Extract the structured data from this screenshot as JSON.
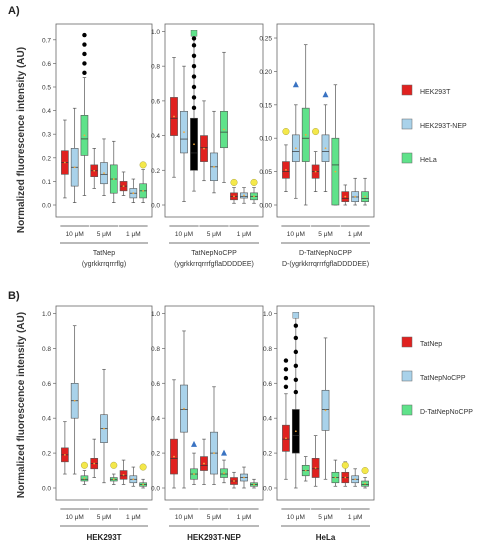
{
  "figure": {
    "panel_a_label": "A)",
    "panel_b_label": "B)",
    "ylabel": "Normalized fluorescence intensity (AU)"
  },
  "colors": {
    "red": "#e0211f",
    "blue": "#a9d2ea",
    "green": "#5fe28a",
    "outlier": "#000000",
    "mean": "#f2a93b",
    "yellow_marker": "#f4e84a",
    "blue_marker": "#3a73c2"
  },
  "legend_a": [
    {
      "label": "HEK293T",
      "color": "red"
    },
    {
      "label": "HEK293T-NEP",
      "color": "blue"
    },
    {
      "label": "HeLa",
      "color": "green"
    }
  ],
  "legend_b": [
    {
      "label": "TatNep",
      "color": "red"
    },
    {
      "label": "TatNepNoCPP",
      "color": "blue"
    },
    {
      "label": "D-TatNepNoCPP",
      "color": "green"
    }
  ],
  "chart_data": [
    {
      "type": "box",
      "panel": "A",
      "groups": [
        "10 μM",
        "5 μM",
        "1 μM"
      ],
      "ylim": [
        0,
        0.75
      ],
      "yticks": [
        "0.0",
        "0.1",
        "0.2",
        "0.3",
        "0.4",
        "0.5",
        "0.6",
        "0.7"
      ],
      "ytick_values": [
        0,
        0.1,
        0.2,
        0.3,
        0.4,
        0.5,
        0.6,
        0.7
      ],
      "caption": "TatNep",
      "caption_bold": "(ygrkkrrqrrrflg)",
      "boxes": [
        {
          "group": 0,
          "color": "red",
          "whisker_low": 0.03,
          "q1": 0.13,
          "median": 0.18,
          "q3": 0.23,
          "whisker_high": 0.36,
          "outliers_high": []
        },
        {
          "group": 0,
          "color": "blue",
          "whisker_low": 0.01,
          "q1": 0.08,
          "median": 0.16,
          "q3": 0.24,
          "whisker_high": 0.41,
          "outliers_high": []
        },
        {
          "group": 0,
          "color": "green",
          "whisker_low": 0.04,
          "q1": 0.21,
          "median": 0.28,
          "q3": 0.38,
          "whisker_high": 0.54,
          "outliers_high": [
            0.56,
            0.6,
            0.64,
            0.68,
            0.72
          ]
        },
        {
          "group": 1,
          "color": "red",
          "whisker_low": 0.07,
          "q1": 0.12,
          "median": 0.145,
          "q3": 0.17,
          "whisker_high": 0.24,
          "outliers_high": []
        },
        {
          "group": 1,
          "color": "blue",
          "whisker_low": 0.04,
          "q1": 0.09,
          "median": 0.13,
          "q3": 0.18,
          "whisker_high": 0.28,
          "outliers_high": []
        },
        {
          "group": 1,
          "color": "green",
          "whisker_low": 0.01,
          "q1": 0.05,
          "median": 0.11,
          "q3": 0.17,
          "whisker_high": 0.27,
          "outliers_high": []
        },
        {
          "group": 2,
          "color": "red",
          "whisker_low": 0.04,
          "q1": 0.06,
          "median": 0.08,
          "q3": 0.1,
          "whisker_high": 0.14,
          "outliers_high": []
        },
        {
          "group": 2,
          "color": "blue",
          "whisker_low": 0.01,
          "q1": 0.03,
          "median": 0.05,
          "q3": 0.07,
          "whisker_high": 0.11,
          "outliers_high": []
        },
        {
          "group": 2,
          "color": "green",
          "whisker_low": 0.01,
          "q1": 0.03,
          "median": 0.06,
          "q3": 0.09,
          "whisker_high": 0.15,
          "outliers_high": []
        }
      ],
      "markers": [
        {
          "box": 8,
          "shape": "circle",
          "color": "yellow_marker",
          "y": 0.17
        }
      ]
    },
    {
      "type": "box",
      "panel": "A",
      "groups": [
        "10 μM",
        "5 μM",
        "1 μM"
      ],
      "ylim": [
        0,
        1.02
      ],
      "yticks": [
        "0.0",
        "0.2",
        "0.4",
        "0.6",
        "0.8",
        "1.0"
      ],
      "ytick_values": [
        0,
        0.2,
        0.4,
        0.6,
        0.8,
        1.0
      ],
      "caption": "TatNepNoCPP",
      "caption_bold": "(ygrkkrrqrrrfgflaDDDDEE)",
      "boxes": [
        {
          "group": 0,
          "color": "red",
          "whisker_low": 0.16,
          "q1": 0.4,
          "median": 0.5,
          "q3": 0.62,
          "whisker_high": 0.85,
          "outliers_high": []
        },
        {
          "group": 0,
          "color": "blue",
          "whisker_low": 0.02,
          "q1": 0.3,
          "median": 0.38,
          "q3": 0.54,
          "whisker_high": 0.8,
          "outliers_high": []
        },
        {
          "group": 0,
          "color": "black",
          "whisker_low": 0.08,
          "q1": 0.2,
          "median": 0.3,
          "q3": 0.5,
          "whisker_high": 0.96,
          "outliers_high": [
            0.56,
            0.62,
            0.68,
            0.74,
            0.8,
            0.86,
            0.92,
            0.96
          ]
        },
        {
          "group": 1,
          "color": "red",
          "whisker_low": 0.14,
          "q1": 0.25,
          "median": 0.33,
          "q3": 0.4,
          "whisker_high": 0.6,
          "outliers_high": []
        },
        {
          "group": 1,
          "color": "blue",
          "whisker_low": 0.07,
          "q1": 0.14,
          "median": 0.22,
          "q3": 0.3,
          "whisker_high": 0.54,
          "outliers_high": []
        },
        {
          "group": 1,
          "color": "green",
          "whisker_low": 0.13,
          "q1": 0.33,
          "median": 0.42,
          "q3": 0.54,
          "whisker_high": 0.88,
          "outliers_high": []
        },
        {
          "group": 2,
          "color": "red",
          "whisker_low": 0.01,
          "q1": 0.03,
          "median": 0.05,
          "q3": 0.07,
          "whisker_high": 0.1,
          "outliers_high": []
        },
        {
          "group": 2,
          "color": "blue",
          "whisker_low": 0.01,
          "q1": 0.04,
          "median": 0.05,
          "q3": 0.07,
          "whisker_high": 0.1,
          "outliers_high": []
        },
        {
          "group": 2,
          "color": "green",
          "whisker_low": 0.01,
          "q1": 0.03,
          "median": 0.05,
          "q3": 0.07,
          "whisker_high": 0.1,
          "outliers_high": []
        }
      ],
      "markers": [
        {
          "box": 2,
          "shape": "square",
          "color": "green",
          "y": 0.99
        },
        {
          "box": 6,
          "shape": "circle",
          "color": "yellow_marker",
          "y": 0.13
        },
        {
          "box": 8,
          "shape": "circle",
          "color": "yellow_marker",
          "y": 0.13
        }
      ]
    },
    {
      "type": "box",
      "panel": "A",
      "groups": [
        "10 μM",
        "5 μM",
        "1 μM"
      ],
      "ylim": [
        0,
        0.265
      ],
      "yticks": [
        "0.00",
        "0.05",
        "0.10",
        "0.15",
        "0.20",
        "0.25"
      ],
      "ytick_values": [
        0,
        0.05,
        0.1,
        0.15,
        0.2,
        0.25
      ],
      "caption": "D-TatNepNoCPP",
      "caption_bold": "D-(ygrkkrrqrrrfgflaDDDDEE)",
      "boxes": [
        {
          "group": 0,
          "color": "red",
          "whisker_low": 0.02,
          "q1": 0.04,
          "median": 0.05,
          "q3": 0.065,
          "whisker_high": 0.09,
          "outliers_high": []
        },
        {
          "group": 0,
          "color": "blue",
          "whisker_low": 0.01,
          "q1": 0.065,
          "median": 0.08,
          "q3": 0.105,
          "whisker_high": 0.15,
          "outliers_high": []
        },
        {
          "group": 0,
          "color": "green",
          "whisker_low": 0.0,
          "q1": 0.065,
          "median": 0.1,
          "q3": 0.145,
          "whisker_high": 0.24,
          "outliers_high": []
        },
        {
          "group": 1,
          "color": "red",
          "whisker_low": 0.02,
          "q1": 0.04,
          "median": 0.05,
          "q3": 0.06,
          "whisker_high": 0.08,
          "outliers_high": []
        },
        {
          "group": 1,
          "color": "blue",
          "whisker_low": 0.02,
          "q1": 0.065,
          "median": 0.08,
          "q3": 0.105,
          "whisker_high": 0.15,
          "outliers_high": []
        },
        {
          "group": 1,
          "color": "green",
          "whisker_low": 0.0,
          "q1": 0.0,
          "median": 0.06,
          "q3": 0.1,
          "whisker_high": 0.18,
          "outliers_high": []
        },
        {
          "group": 2,
          "color": "red",
          "whisker_low": 0.0,
          "q1": 0.005,
          "median": 0.01,
          "q3": 0.02,
          "whisker_high": 0.03,
          "outliers_high": []
        },
        {
          "group": 2,
          "color": "blue",
          "whisker_low": 0.0,
          "q1": 0.005,
          "median": 0.012,
          "q3": 0.02,
          "whisker_high": 0.04,
          "outliers_high": []
        },
        {
          "group": 2,
          "color": "green",
          "whisker_low": 0.0,
          "q1": 0.005,
          "median": 0.01,
          "q3": 0.02,
          "whisker_high": 0.04,
          "outliers_high": []
        }
      ],
      "markers": [
        {
          "box": 0,
          "shape": "circle",
          "color": "yellow_marker",
          "y": 0.11
        },
        {
          "box": 1,
          "shape": "triangle",
          "color": "blue_marker",
          "y": 0.18
        },
        {
          "box": 3,
          "shape": "circle",
          "color": "yellow_marker",
          "y": 0.11
        },
        {
          "box": 4,
          "shape": "triangle",
          "color": "blue_marker",
          "y": 0.165
        }
      ]
    },
    {
      "type": "box",
      "panel": "B",
      "groups": [
        "10 μM",
        "5 μM",
        "1 μM"
      ],
      "ylim": [
        0,
        1.02
      ],
      "yticks": [
        "0.0",
        "0.2",
        "0.4",
        "0.6",
        "0.8",
        "1.0"
      ],
      "ytick_values": [
        0,
        0.2,
        0.4,
        0.6,
        0.8,
        1.0
      ],
      "caption": "",
      "caption_bold": "HEK293T",
      "boxes": [
        {
          "group": 0,
          "color": "red",
          "whisker_low": 0.08,
          "q1": 0.15,
          "median": 0.19,
          "q3": 0.23,
          "whisker_high": 0.38,
          "outliers_high": []
        },
        {
          "group": 0,
          "color": "blue",
          "whisker_low": 0.08,
          "q1": 0.4,
          "median": 0.5,
          "q3": 0.6,
          "whisker_high": 0.93,
          "outliers_high": []
        },
        {
          "group": 0,
          "color": "green",
          "whisker_low": 0.02,
          "q1": 0.04,
          "median": 0.05,
          "q3": 0.07,
          "whisker_high": 0.1,
          "outliers_high": []
        },
        {
          "group": 1,
          "color": "red",
          "whisker_low": 0.06,
          "q1": 0.11,
          "median": 0.14,
          "q3": 0.17,
          "whisker_high": 0.28,
          "outliers_high": []
        },
        {
          "group": 1,
          "color": "blue",
          "whisker_low": 0.03,
          "q1": 0.26,
          "median": 0.34,
          "q3": 0.42,
          "whisker_high": 0.68,
          "outliers_high": []
        },
        {
          "group": 1,
          "color": "green",
          "whisker_low": 0.02,
          "q1": 0.04,
          "median": 0.05,
          "q3": 0.06,
          "whisker_high": 0.08,
          "outliers_high": []
        },
        {
          "group": 2,
          "color": "red",
          "whisker_low": 0.02,
          "q1": 0.05,
          "median": 0.07,
          "q3": 0.1,
          "whisker_high": 0.16,
          "outliers_high": []
        },
        {
          "group": 2,
          "color": "blue",
          "whisker_low": 0.01,
          "q1": 0.03,
          "median": 0.05,
          "q3": 0.07,
          "whisker_high": 0.12,
          "outliers_high": []
        },
        {
          "group": 2,
          "color": "green",
          "whisker_low": 0.0,
          "q1": 0.01,
          "median": 0.02,
          "q3": 0.03,
          "whisker_high": 0.05,
          "outliers_high": []
        }
      ],
      "markers": [
        {
          "box": 2,
          "shape": "circle",
          "color": "yellow_marker",
          "y": 0.13
        },
        {
          "box": 5,
          "shape": "circle",
          "color": "yellow_marker",
          "y": 0.13
        },
        {
          "box": 8,
          "shape": "circle",
          "color": "yellow_marker",
          "y": 0.12
        }
      ]
    },
    {
      "type": "box",
      "panel": "B",
      "groups": [
        "10 μM",
        "5 μM",
        "1 μM"
      ],
      "ylim": [
        0,
        1.02
      ],
      "yticks": [
        "0.0",
        "0.2",
        "0.4",
        "0.6",
        "0.8",
        "1.0"
      ],
      "ytick_values": [
        0,
        0.2,
        0.4,
        0.6,
        0.8,
        1.0
      ],
      "caption": "",
      "caption_bold": "HEK293T-NEP",
      "boxes": [
        {
          "group": 0,
          "color": "red",
          "whisker_low": 0.0,
          "q1": 0.08,
          "median": 0.17,
          "q3": 0.28,
          "whisker_high": 0.62,
          "outliers_high": []
        },
        {
          "group": 0,
          "color": "blue",
          "whisker_low": 0.0,
          "q1": 0.32,
          "median": 0.45,
          "q3": 0.59,
          "whisker_high": 0.9,
          "outliers_high": []
        },
        {
          "group": 0,
          "color": "green",
          "whisker_low": 0.02,
          "q1": 0.05,
          "median": 0.08,
          "q3": 0.11,
          "whisker_high": 0.2,
          "outliers_high": []
        },
        {
          "group": 1,
          "color": "red",
          "whisker_low": 0.02,
          "q1": 0.1,
          "median": 0.13,
          "q3": 0.18,
          "whisker_high": 0.28,
          "outliers_high": []
        },
        {
          "group": 1,
          "color": "blue",
          "whisker_low": 0.02,
          "q1": 0.08,
          "median": 0.2,
          "q3": 0.32,
          "whisker_high": 0.58,
          "outliers_high": []
        },
        {
          "group": 1,
          "color": "green",
          "whisker_low": 0.03,
          "q1": 0.06,
          "median": 0.08,
          "q3": 0.11,
          "whisker_high": 0.16,
          "outliers_high": []
        },
        {
          "group": 2,
          "color": "red",
          "whisker_low": 0.0,
          "q1": 0.02,
          "median": 0.04,
          "q3": 0.06,
          "whisker_high": 0.09,
          "outliers_high": []
        },
        {
          "group": 2,
          "color": "blue",
          "whisker_low": 0.0,
          "q1": 0.04,
          "median": 0.06,
          "q3": 0.08,
          "whisker_high": 0.12,
          "outliers_high": []
        },
        {
          "group": 2,
          "color": "green",
          "whisker_low": 0.0,
          "q1": 0.01,
          "median": 0.02,
          "q3": 0.03,
          "whisker_high": 0.05,
          "outliers_high": []
        }
      ],
      "markers": [
        {
          "box": 2,
          "shape": "triangle",
          "color": "blue_marker",
          "y": 0.25
        },
        {
          "box": 5,
          "shape": "triangle",
          "color": "blue_marker",
          "y": 0.2
        }
      ]
    },
    {
      "type": "box",
      "panel": "B",
      "groups": [
        "10 μM",
        "5 μM",
        "1 μM"
      ],
      "ylim": [
        0,
        1.02
      ],
      "yticks": [
        "0.0",
        "0.2",
        "0.4",
        "0.6",
        "0.8",
        "1.0"
      ],
      "ytick_values": [
        0,
        0.2,
        0.4,
        0.6,
        0.8,
        1.0
      ],
      "caption": "",
      "caption_bold": "HeLa",
      "boxes": [
        {
          "group": 0,
          "color": "red",
          "whisker_low": 0.05,
          "q1": 0.21,
          "median": 0.28,
          "q3": 0.36,
          "whisker_high": 0.54,
          "outliers_high": [
            0.58,
            0.63,
            0.68,
            0.73
          ]
        },
        {
          "group": 0,
          "color": "black",
          "whisker_low": 0.0,
          "q1": 0.2,
          "median": 0.3,
          "q3": 0.45,
          "whisker_high": 0.98,
          "outliers_high": [
            0.55,
            0.62,
            0.7,
            0.78,
            0.86,
            0.93
          ]
        },
        {
          "group": 0,
          "color": "green",
          "whisker_low": 0.04,
          "q1": 0.07,
          "median": 0.1,
          "q3": 0.13,
          "whisker_high": 0.18,
          "outliers_high": []
        },
        {
          "group": 1,
          "color": "red",
          "whisker_low": 0.01,
          "q1": 0.06,
          "median": 0.11,
          "q3": 0.17,
          "whisker_high": 0.3,
          "outliers_high": []
        },
        {
          "group": 1,
          "color": "blue",
          "whisker_low": 0.05,
          "q1": 0.33,
          "median": 0.45,
          "q3": 0.56,
          "whisker_high": 0.86,
          "outliers_high": []
        },
        {
          "group": 1,
          "color": "green",
          "whisker_low": 0.01,
          "q1": 0.03,
          "median": 0.06,
          "q3": 0.09,
          "whisker_high": 0.16,
          "outliers_high": []
        },
        {
          "group": 2,
          "color": "red",
          "whisker_low": 0.01,
          "q1": 0.03,
          "median": 0.06,
          "q3": 0.09,
          "whisker_high": 0.15,
          "outliers_high": []
        },
        {
          "group": 2,
          "color": "blue",
          "whisker_low": 0.01,
          "q1": 0.03,
          "median": 0.05,
          "q3": 0.07,
          "whisker_high": 0.11,
          "outliers_high": []
        },
        {
          "group": 2,
          "color": "green",
          "whisker_low": 0.0,
          "q1": 0.01,
          "median": 0.02,
          "q3": 0.04,
          "whisker_high": 0.06,
          "outliers_high": []
        }
      ],
      "markers": [
        {
          "box": 1,
          "shape": "square",
          "color": "blue",
          "y": 0.99
        },
        {
          "box": 6,
          "shape": "circle",
          "color": "yellow_marker",
          "y": 0.13
        },
        {
          "box": 8,
          "shape": "circle",
          "color": "yellow_marker",
          "y": 0.1
        }
      ]
    }
  ]
}
